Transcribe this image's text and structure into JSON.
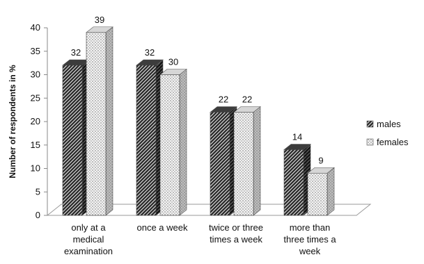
{
  "chart_data": {
    "type": "bar",
    "style": "3d-clustered",
    "categories": [
      [
        "only at a",
        "medical",
        "examination"
      ],
      [
        "once a week"
      ],
      [
        "twice or three",
        "times a week"
      ],
      [
        "more than",
        "three times a",
        "week"
      ]
    ],
    "series": [
      {
        "name": "males",
        "values": [
          32,
          32,
          22,
          14
        ],
        "pattern": "dark-diagonal-hatch"
      },
      {
        "name": "females",
        "values": [
          39,
          30,
          22,
          9
        ],
        "pattern": "light-dotted"
      }
    ],
    "ylabel": "Number of respondents in %",
    "xlabel": "",
    "title": "",
    "ylim": [
      0,
      40
    ],
    "yticks": [
      "0",
      "5",
      "10",
      "15",
      "20",
      "25",
      "30",
      "35",
      "40"
    ],
    "data_labels": true,
    "grid": false,
    "legend_position": "right"
  }
}
